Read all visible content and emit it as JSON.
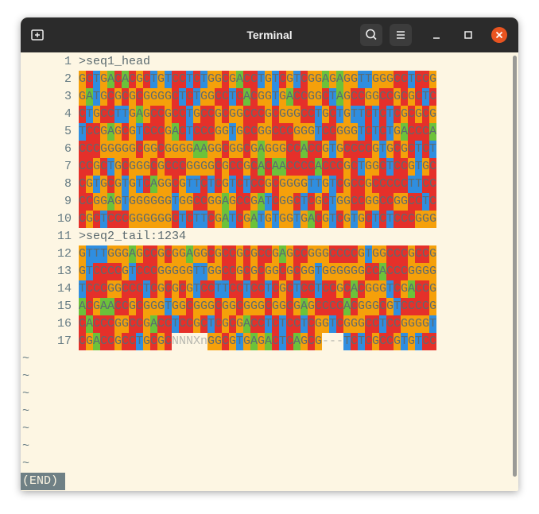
{
  "window": {
    "title": "Terminal"
  },
  "lines": [
    {
      "number": 1,
      "text": ">seq1_head"
    },
    {
      "number": 2,
      "text": "GCTGACACGCTGTCCTCTGGCGACCTGTCGTCGGAGAGGTTGGGCCTCCG"
    },
    {
      "number": 3,
      "text": "GATGCGCGCGGGGCTCTGGCCTCACGGTGACCGGCTAGCCGGCCGCGCTC"
    },
    {
      "number": 4,
      "text": "CTGCCTTGAGCCGCCTGCCGCGGCCCGCGGGCCTGCTGTTCTCTCGCGCG"
    },
    {
      "number": 5,
      "text": "TCCGAGCGTCCCGACTCCCGGTGCCGGCCCGGGTCCGGGTCTCTGACCCA"
    },
    {
      "number": 6,
      "text": "CCCGGGGGCGGCGGGGAAGGCGGCGAGGGCCACCGTGCCCCGTGCGCTCT"
    },
    {
      "number": 7,
      "text": "CCGCTGCGGGCGCCCGGGGCGCCGCACAACCCCACCCGCTGGCTCCGTGC"
    },
    {
      "number": 8,
      "text": "CGTGCGTGTCAGGCGTTCTCGTCTCCGCGGGGTTGTCGCCGCCCCCTTCC"
    },
    {
      "number": 9,
      "text": "CCGGAGTGGGGGGTGGCCGGAGCCGATCGGCTCGCTGGCCGGCCGGCCTC"
    },
    {
      "number": 10,
      "text": "CGCTCCCGGGGGGCTCTTCGATCGATGTGGTGACGTCGTGCTCTCCCGGG"
    },
    {
      "number": 11,
      "text": ">seq2_tail:1234"
    },
    {
      "number": 12,
      "text": "GTTTGGGAGCCGCGGAGGCGCCGCGCCGAGCCGGGCCCCGTGGCCCGCCG"
    },
    {
      "number": 13,
      "text": "GTCCCCGTCCCGGGGGTTGGCCGCGCGGCGCGGTGGGGGGCCACCCGGGG"
    },
    {
      "number": 14,
      "text": "TCCCGGCCCTCGCGCGTCCTTCCTCCTCGCTCCTCCGCACGGGTCGACCG"
    },
    {
      "number": 15,
      "text": "ACGAACCGCGGGTGGCGGGCGGCGGGCGGCGAGCCCCACGGGCGTCCCCG"
    },
    {
      "number": 16,
      "text": "CACCCGGCCGACCTCCGCTCGCGACCTCTCCTCGGTCGGGCCTCCGGGGT"
    },
    {
      "number": 17,
      "text": "CGACCGCCTGCGCNNNXnGGCGTGAGACTCAGCG---TCTCGCCGTGTCC"
    }
  ],
  "empty_markers": [
    "~",
    "~",
    "~",
    "~",
    "~",
    "~",
    "~"
  ],
  "status": "(END)"
}
